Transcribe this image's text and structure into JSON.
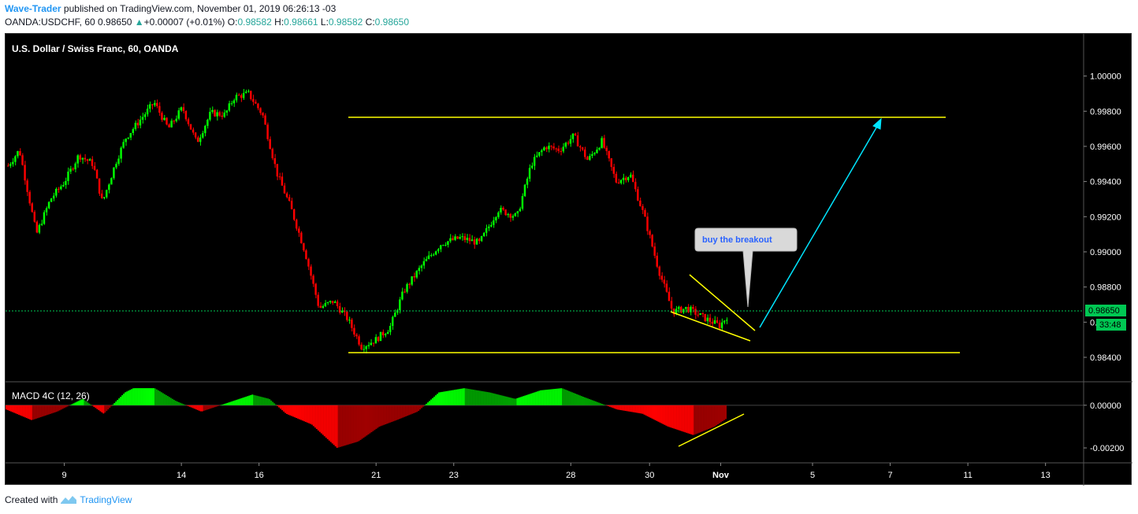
{
  "header": {
    "author": "Wave-Trader",
    "published_text": " published on TradingView.com, November 01, 2019 06:26:13 -03",
    "symbol": "OANDA:USDCHF, 60",
    "last": "0.98650",
    "change_arrow": "▲",
    "change": "+0.00007 (+0.01%)",
    "o_label": "O:",
    "o_val": "0.98582",
    "h_label": "H:",
    "h_val": "0.98661",
    "l_label": "L:",
    "l_val": "0.98582",
    "c_label": "C:",
    "c_val": "0.98650"
  },
  "footer": {
    "created_with": "Created with",
    "brand": "TradingView"
  },
  "colors": {
    "background": "#000000",
    "up": "#00ff00",
    "down": "#ff0000",
    "trendline": "#ffff00",
    "arrow": "#00e5ff",
    "price_line": "#00c853"
  },
  "chart_data": [
    {
      "type": "candlestick",
      "title": "U.S. Dollar / Swiss Franc, 60, OANDA",
      "y_ticks": [
        "1.00000",
        "0.99800",
        "0.99600",
        "0.99400",
        "0.99200",
        "0.99000",
        "0.98800",
        "0.98600",
        "0.98400"
      ],
      "ylim": [
        0.9827,
        1.0024
      ],
      "x_ticks": [
        "9",
        "14",
        "16",
        "21",
        "23",
        "28",
        "30",
        "Nov",
        "5",
        "7",
        "11",
        "13"
      ],
      "current_price_label": "0.98650",
      "countdown_label": "33:48",
      "annotation": "buy the breakout",
      "path": [
        [
          0,
          0.9949
        ],
        [
          0.012,
          0.9958
        ],
        [
          0.03,
          0.991
        ],
        [
          0.045,
          0.993
        ],
        [
          0.06,
          0.994
        ],
        [
          0.075,
          0.9955
        ],
        [
          0.09,
          0.995
        ],
        [
          0.1,
          0.9928
        ],
        [
          0.115,
          0.9952
        ],
        [
          0.125,
          0.9965
        ],
        [
          0.14,
          0.9975
        ],
        [
          0.155,
          0.9985
        ],
        [
          0.17,
          0.997
        ],
        [
          0.185,
          0.9982
        ],
        [
          0.2,
          0.9962
        ],
        [
          0.215,
          0.9979
        ],
        [
          0.23,
          0.9978
        ],
        [
          0.24,
          0.9988
        ],
        [
          0.255,
          0.999
        ],
        [
          0.27,
          0.9978
        ],
        [
          0.285,
          0.9945
        ],
        [
          0.3,
          0.9925
        ],
        [
          0.315,
          0.99
        ],
        [
          0.33,
          0.9868
        ],
        [
          0.345,
          0.9872
        ],
        [
          0.36,
          0.9862
        ],
        [
          0.375,
          0.9846
        ],
        [
          0.39,
          0.985
        ],
        [
          0.405,
          0.9857
        ],
        [
          0.42,
          0.9878
        ],
        [
          0.44,
          0.9893
        ],
        [
          0.46,
          0.9905
        ],
        [
          0.48,
          0.9908
        ],
        [
          0.5,
          0.9905
        ],
        [
          0.52,
          0.9924
        ],
        [
          0.54,
          0.992
        ],
        [
          0.555,
          0.995
        ],
        [
          0.57,
          0.996
        ],
        [
          0.585,
          0.9958
        ],
        [
          0.6,
          0.9966
        ],
        [
          0.615,
          0.9952
        ],
        [
          0.63,
          0.9963
        ],
        [
          0.645,
          0.994
        ],
        [
          0.66,
          0.9944
        ],
        [
          0.675,
          0.992
        ],
        [
          0.69,
          0.989
        ],
        [
          0.705,
          0.9866
        ],
        [
          0.72,
          0.9868
        ],
        [
          0.74,
          0.9862
        ],
        [
          0.755,
          0.9858
        ],
        [
          0.765,
          0.9865
        ]
      ]
    },
    {
      "type": "histogram",
      "title": "MACD 4C (12, 26)",
      "y_ticks": [
        "0.00000",
        "-0.00200"
      ],
      "ylim": [
        -0.0027,
        0.0011
      ],
      "path": [
        [
          0,
          -0.0002
        ],
        [
          0.03,
          -0.0007
        ],
        [
          0.06,
          -0.0003
        ],
        [
          0.09,
          0.0003
        ],
        [
          0.115,
          -0.0004
        ],
        [
          0.14,
          0.0006
        ],
        [
          0.15,
          0.0008
        ],
        [
          0.175,
          0.0008
        ],
        [
          0.2,
          0.0002
        ],
        [
          0.23,
          -0.0003
        ],
        [
          0.26,
          0.0001
        ],
        [
          0.29,
          0.0005
        ],
        [
          0.31,
          0.0003
        ],
        [
          0.33,
          -0.0004
        ],
        [
          0.36,
          -0.0009
        ],
        [
          0.39,
          -0.002
        ],
        [
          0.415,
          -0.0017
        ],
        [
          0.44,
          -0.001
        ],
        [
          0.46,
          -0.0007
        ],
        [
          0.485,
          -0.0003
        ],
        [
          0.51,
          0.0006
        ],
        [
          0.54,
          0.0008
        ],
        [
          0.57,
          0.0006
        ],
        [
          0.6,
          0.0003
        ],
        [
          0.63,
          0.0007
        ],
        [
          0.655,
          0.0008
        ],
        [
          0.68,
          0.0004
        ],
        [
          0.7,
          0.0001
        ],
        [
          0.72,
          -0.0002
        ],
        [
          0.75,
          -0.0004
        ],
        [
          0.78,
          -0.001
        ],
        [
          0.81,
          -0.0014
        ],
        [
          0.835,
          -0.001
        ],
        [
          0.85,
          -0.0006
        ]
      ]
    }
  ]
}
